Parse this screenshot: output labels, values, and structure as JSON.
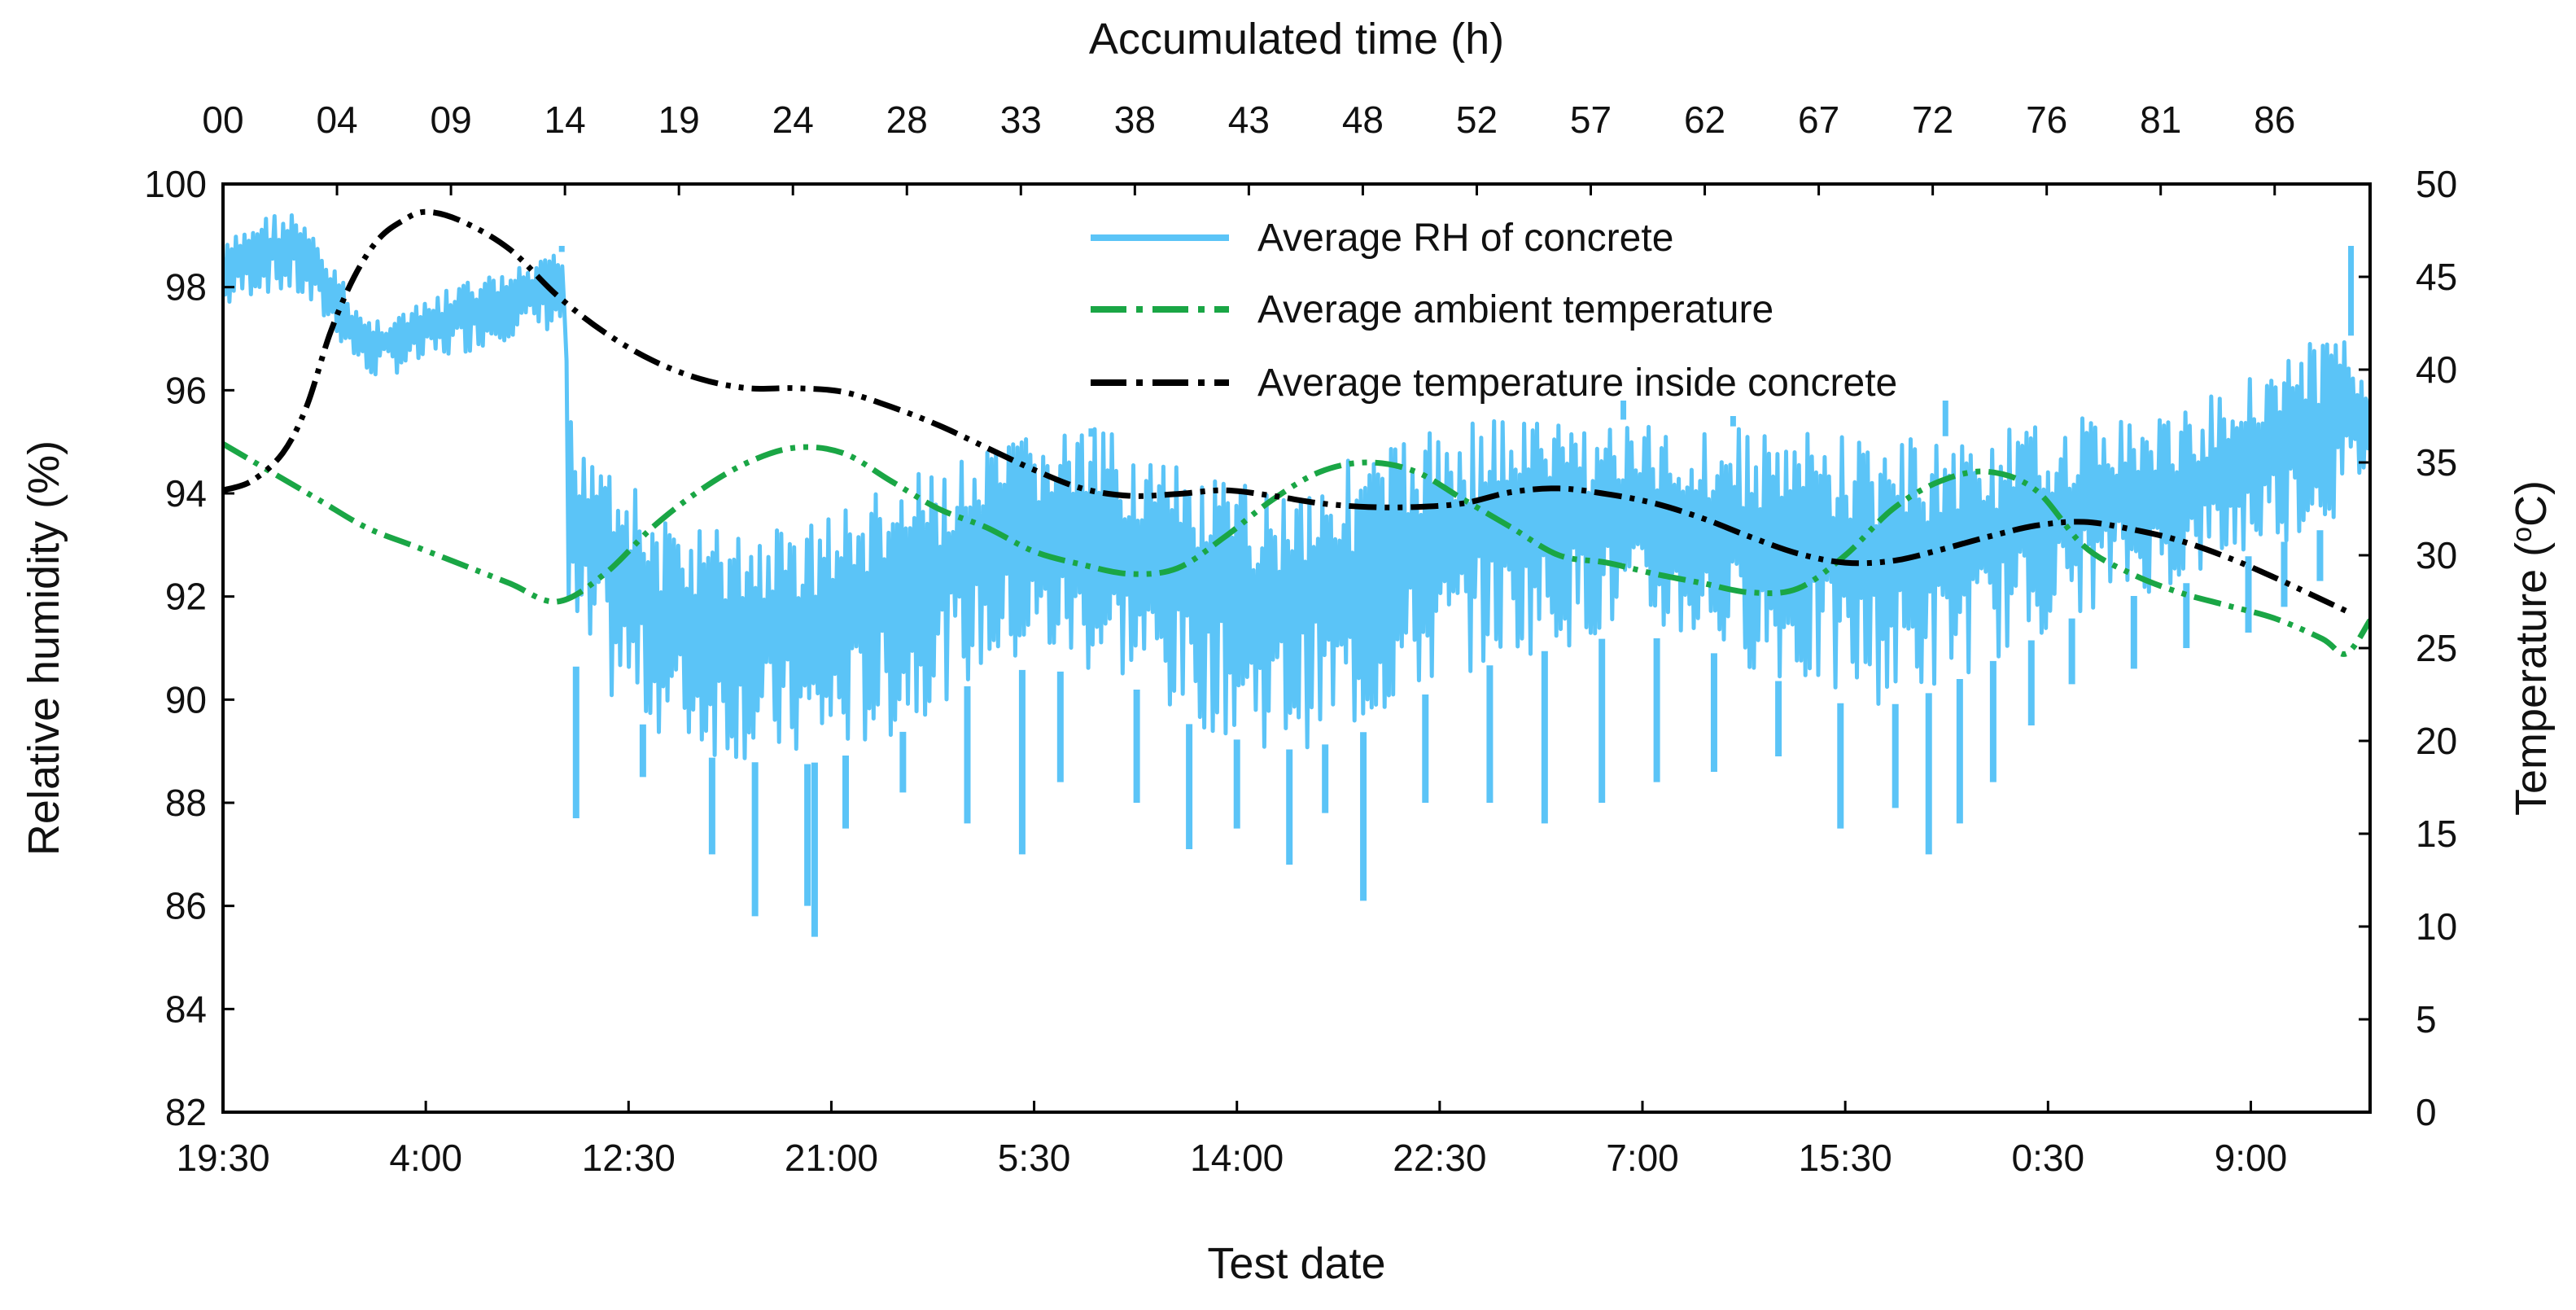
{
  "chart_data": {
    "type": "line",
    "top_axis": {
      "title": "Accumulated time (h)",
      "ticks": [
        "00",
        "04",
        "09",
        "14",
        "19",
        "24",
        "28",
        "33",
        "38",
        "43",
        "48",
        "52",
        "57",
        "62",
        "67",
        "72",
        "76",
        "81",
        "86"
      ]
    },
    "x_axis": {
      "title": "Test date",
      "range": [
        0,
        90
      ],
      "tick_positions": [
        0,
        8.5,
        17,
        25.5,
        34,
        42.5,
        51,
        59.5,
        68,
        76.5,
        85
      ],
      "ticks": [
        "19:30",
        "4:00",
        "12:30",
        "21:00",
        "5:30",
        "14:00",
        "22:30",
        "7:00",
        "15:30",
        "0:30",
        "9:00"
      ]
    },
    "y_left": {
      "title": "Relative humidity (%)",
      "range": [
        82,
        100
      ],
      "ticks": [
        "82",
        "84",
        "86",
        "88",
        "90",
        "92",
        "94",
        "96",
        "98",
        "100"
      ]
    },
    "y_right": {
      "title": "Temperature (",
      "title_sup": "o",
      "title_end": "C)",
      "range": [
        0,
        50
      ],
      "ticks": [
        "0",
        "5",
        "10",
        "15",
        "20",
        "25",
        "30",
        "35",
        "40",
        "45",
        "50"
      ]
    },
    "legend": {
      "position": "top-center",
      "entries": [
        "Average RH of concrete",
        "Average ambient temperature",
        "Average temperature inside concrete"
      ]
    },
    "colors": {
      "rh": "#5bc4f7",
      "ambient": "#1aa645",
      "inside": "#000000"
    },
    "series": [
      {
        "name": "Average RH of concrete",
        "axis": "left",
        "x": [
          0,
          1.5,
          3,
          4.5,
          6,
          8,
          10,
          12,
          14.3,
          14.5,
          16,
          18,
          20,
          22,
          24,
          26,
          28,
          30,
          32,
          34,
          36,
          38,
          40,
          42,
          44,
          46,
          48,
          50,
          52,
          54,
          56,
          58,
          60,
          62,
          64,
          66,
          68,
          70,
          72,
          74,
          76,
          78,
          80,
          82,
          84,
          86,
          88,
          89,
          90
        ],
        "upper": [
          98.8,
          99.4,
          99.5,
          98.5,
          97.4,
          97.6,
          98.1,
          98.3,
          98.7,
          95.6,
          95.3,
          93.5,
          93.4,
          93.3,
          93.5,
          93.8,
          94.2,
          94.5,
          94.8,
          95.3,
          95.3,
          95.1,
          94.5,
          94.2,
          94.2,
          94.6,
          94.8,
          95.2,
          95.5,
          95.6,
          95.5,
          95.5,
          95.3,
          95.3,
          95.3,
          95.2,
          95.2,
          95.1,
          95.1,
          95.2,
          95.3,
          95.5,
          95.5,
          95.5,
          96.1,
          96.7,
          97.0,
          97.2,
          96.5
        ],
        "lower": [
          97.5,
          97.9,
          97.8,
          97.2,
          96.2,
          96.4,
          96.7,
          97.0,
          97.2,
          90.8,
          90.0,
          89.4,
          88.9,
          88.8,
          88.7,
          88.9,
          89.2,
          89.9,
          90.5,
          90.6,
          90.5,
          90.3,
          89.6,
          89.3,
          89.0,
          89.1,
          89.4,
          90.0,
          90.5,
          90.8,
          91.0,
          91.2,
          91.2,
          91.0,
          90.6,
          90.2,
          89.9,
          89.9,
          90.2,
          90.7,
          91.2,
          91.7,
          92.0,
          92.2,
          92.6,
          93.0,
          93.3,
          93.6,
          94.5
        ],
        "dips": [
          [
            14.8,
            87.7
          ],
          [
            17.6,
            88.5
          ],
          [
            20.5,
            87.0
          ],
          [
            22.3,
            85.8
          ],
          [
            24.5,
            86.0
          ],
          [
            24.8,
            85.4
          ],
          [
            26.1,
            87.5
          ],
          [
            28.5,
            88.2
          ],
          [
            31.2,
            87.6
          ],
          [
            33.5,
            87.0
          ],
          [
            35.1,
            88.4
          ],
          [
            38.3,
            88.0
          ],
          [
            40.5,
            87.1
          ],
          [
            42.5,
            87.5
          ],
          [
            44.7,
            86.8
          ],
          [
            46.2,
            87.8
          ],
          [
            47.8,
            86.1
          ],
          [
            50.4,
            88.0
          ],
          [
            53.1,
            88.0
          ],
          [
            55.4,
            87.6
          ],
          [
            57.8,
            88.0
          ],
          [
            60.1,
            88.4
          ],
          [
            62.5,
            88.6
          ],
          [
            65.2,
            88.9
          ],
          [
            67.8,
            87.5
          ],
          [
            70.1,
            87.9
          ],
          [
            71.5,
            87.0
          ],
          [
            72.8,
            87.6
          ],
          [
            74.2,
            88.4
          ],
          [
            75.8,
            89.5
          ],
          [
            77.5,
            90.3
          ],
          [
            80.1,
            90.6
          ],
          [
            82.3,
            91.0
          ],
          [
            84.9,
            91.3
          ],
          [
            86.4,
            91.8
          ],
          [
            87.9,
            92.3
          ]
        ],
        "spikes": [
          [
            14.2,
            98.8
          ],
          [
            89.2,
            98.8
          ],
          [
            36.4,
            95.1
          ],
          [
            58.7,
            95.8
          ],
          [
            63.3,
            95.5
          ],
          [
            72.2,
            95.8
          ]
        ]
      },
      {
        "name": "Average ambient temperature",
        "axis": "right",
        "x": [
          0,
          2,
          4,
          6,
          8,
          10,
          12,
          14,
          16,
          18,
          20,
          22,
          24,
          26,
          28,
          30,
          32,
          34,
          36,
          38,
          40,
          42,
          44,
          46,
          48,
          50,
          52,
          54,
          56,
          58,
          60,
          62,
          64,
          66,
          68,
          70,
          72,
          74,
          76,
          78,
          80,
          82,
          84,
          86,
          88,
          89,
          90
        ],
        "values": [
          36.0,
          34.5,
          33.0,
          31.5,
          30.5,
          29.5,
          28.5,
          27.5,
          29.0,
          31.5,
          33.5,
          35.0,
          35.8,
          35.5,
          34.0,
          32.5,
          31.5,
          30.2,
          29.5,
          29.0,
          29.3,
          31.0,
          33.0,
          34.5,
          35.0,
          34.5,
          33.0,
          31.5,
          30.0,
          29.6,
          29.0,
          28.5,
          28.0,
          28.2,
          30.0,
          32.5,
          34.0,
          34.5,
          33.5,
          30.5,
          29.0,
          28.0,
          27.3,
          26.6,
          25.5,
          24.7,
          26.5
        ]
      },
      {
        "name": "Average temperature inside concrete",
        "axis": "right",
        "x": [
          0,
          1.2,
          2.5,
          3.5,
          4.5,
          5.5,
          6.5,
          7.5,
          8.5,
          10,
          12,
          14,
          16,
          18,
          20,
          22,
          24,
          26,
          28,
          30,
          32,
          34,
          36,
          38,
          40,
          42,
          44,
          46,
          48,
          50,
          52,
          54,
          56,
          58,
          60,
          62,
          64,
          66,
          68,
          70,
          72,
          74,
          76,
          78,
          80,
          82,
          84,
          86,
          88,
          89
        ],
        "values": [
          33.5,
          34.0,
          35.5,
          38.0,
          42.0,
          45.0,
          47.0,
          48.0,
          48.5,
          48.0,
          46.5,
          44.0,
          42.0,
          40.5,
          39.5,
          39.0,
          39.0,
          38.8,
          38.0,
          37.0,
          35.8,
          34.6,
          33.6,
          33.2,
          33.3,
          33.5,
          33.2,
          32.8,
          32.6,
          32.6,
          32.8,
          33.4,
          33.6,
          33.3,
          32.8,
          32.0,
          31.0,
          30.1,
          29.6,
          29.7,
          30.3,
          31.0,
          31.6,
          31.8,
          31.4,
          30.8,
          29.9,
          28.8,
          27.6,
          27.0
        ]
      }
    ]
  }
}
